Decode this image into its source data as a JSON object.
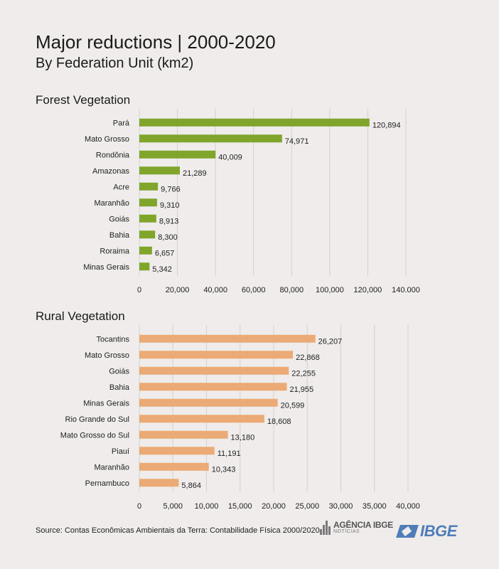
{
  "title": "Major reductions  | 2000-2020",
  "subtitle": "By Federation Unit (km2)",
  "colors": {
    "forest": "#7fa52b",
    "rural": "#ebaa76",
    "axis": "#d6cfcc",
    "text": "#222222"
  },
  "chart_data": [
    {
      "type": "bar",
      "orientation": "horizontal",
      "title": "Forest Vegetation",
      "categories": [
        "Pará",
        "Mato Grosso",
        "Rondônia",
        "Amazonas",
        "Acre",
        "Maranhão",
        "Goiás",
        "Bahia",
        "Roraima",
        "Minas Gerais"
      ],
      "values": [
        120894,
        74971,
        40009,
        21289,
        9766,
        9310,
        8913,
        8300,
        6657,
        5342
      ],
      "value_labels": [
        "120,894",
        "74,971",
        "40,009",
        "21,289",
        "9,766",
        "9,310",
        "8,913",
        "8,300",
        "6,657",
        "5,342"
      ],
      "xlim": [
        0,
        140000
      ],
      "ticks": [
        0,
        20000,
        40000,
        60000,
        80000,
        100000,
        120000,
        140000
      ],
      "tick_labels": [
        "0",
        "20,000",
        "40,000",
        "60,000",
        "80,000",
        "100,000",
        "120,000",
        "140.000"
      ],
      "grid": true
    },
    {
      "type": "bar",
      "orientation": "horizontal",
      "title": "Rural Vegetation",
      "categories": [
        "Tocantins",
        "Mato Grosso",
        "Goiás",
        "Bahia",
        "Minas Gerais",
        "Rio Grande do Sul",
        "Mato Grosso do Sul",
        "Piauí",
        "Maranhão",
        "Pernambuco"
      ],
      "values": [
        26207,
        22868,
        22255,
        21955,
        20599,
        18608,
        13180,
        11191,
        10343,
        5864
      ],
      "value_labels": [
        "26,207",
        "22,868",
        "22,255",
        "21,955",
        "20,599",
        "18,608",
        "13,180",
        "11,191",
        "10,343",
        "5,864"
      ],
      "xlim": [
        0,
        40000
      ],
      "ticks": [
        0,
        5000,
        10000,
        15000,
        20000,
        25000,
        30000,
        35000,
        40000
      ],
      "tick_labels": [
        "0",
        "5,000",
        "10,000",
        "15,000",
        "20,000",
        "25,000",
        "30,000",
        "35,000",
        "40,000"
      ],
      "grid": true
    }
  ],
  "source": "Source: Contas Econômicas Ambientais da Terra: Contabilidade Física 2000/2020",
  "logos": {
    "agencia_line1": "AGÊNCIA IBGE",
    "agencia_line2": "NOTÍCIAS",
    "ibge": "IBGE"
  }
}
